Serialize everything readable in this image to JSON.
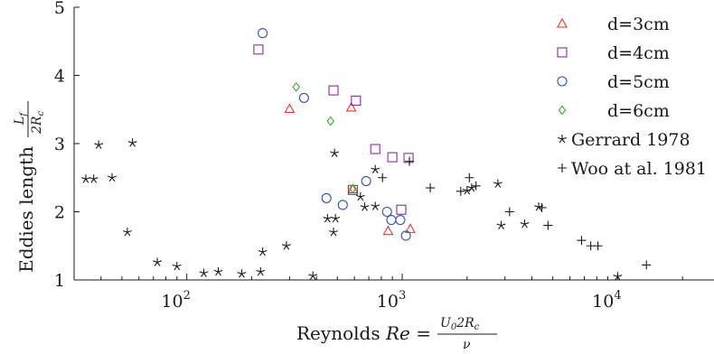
{
  "chart_data": {
    "type": "scatter",
    "xscale": "log",
    "xlim": [
      30,
      28000
    ],
    "ylim": [
      1,
      5
    ],
    "grid": false,
    "legend_position": "top-right",
    "xlabel_prefix": "Reynolds ",
    "xlabel_var": "Re",
    "xlabel_eq": " = ",
    "xlabel_num_a": "U",
    "xlabel_num_sub_a": "0",
    "xlabel_num_b": "2R",
    "xlabel_num_sub_b": "c",
    "xlabel_den": "ν",
    "ylabel_prefix": "Eddies length",
    "ylabel_num": "L",
    "ylabel_num_sub": "f",
    "ylabel_den": "2R",
    "ylabel_den_sub": "c",
    "x_tick_base": "10",
    "x_ticks": [
      {
        "value": 100,
        "exp": "2"
      },
      {
        "value": 1000,
        "exp": "3"
      },
      {
        "value": 10000,
        "exp": "4"
      }
    ],
    "y_ticks": [
      1,
      2,
      3,
      4,
      5
    ],
    "series": [
      {
        "name": "d=3cm",
        "marker": "triangle",
        "color": "#e8322a",
        "points": [
          [
            300,
            3.51
          ],
          [
            580,
            3.53
          ],
          [
            860,
            1.72
          ],
          [
            1090,
            1.75
          ],
          [
            590,
            2.33
          ]
        ]
      },
      {
        "name": "d=4cm",
        "marker": "square",
        "color": "#8e2a9e",
        "points": [
          [
            215,
            4.38
          ],
          [
            480,
            3.78
          ],
          [
            610,
            3.63
          ],
          [
            750,
            2.92
          ],
          [
            900,
            2.8
          ],
          [
            1070,
            2.79
          ],
          [
            990,
            2.03
          ],
          [
            590,
            2.32
          ]
        ]
      },
      {
        "name": "d=5cm",
        "marker": "circle",
        "color": "#2f4fb5",
        "points": [
          [
            225,
            4.62
          ],
          [
            350,
            3.67
          ],
          [
            445,
            2.2
          ],
          [
            530,
            2.1
          ],
          [
            680,
            2.45
          ],
          [
            850,
            2.0
          ],
          [
            890,
            1.88
          ],
          [
            980,
            1.88
          ],
          [
            1040,
            1.65
          ]
        ]
      },
      {
        "name": "d=6cm",
        "marker": "diamond",
        "color": "#3aa83a",
        "points": [
          [
            322,
            3.83
          ],
          [
            465,
            3.33
          ],
          [
            590,
            2.34
          ]
        ]
      },
      {
        "name": "Gerrard 1978",
        "marker": "star",
        "color": "#1a1a1a",
        "points": [
          [
            34,
            2.48
          ],
          [
            37,
            2.48
          ],
          [
            39,
            2.98
          ],
          [
            45,
            2.5
          ],
          [
            56,
            3.01
          ],
          [
            53,
            1.7
          ],
          [
            73,
            1.26
          ],
          [
            90,
            1.2
          ],
          [
            120,
            1.1
          ],
          [
            140,
            1.12
          ],
          [
            180,
            1.09
          ],
          [
            220,
            1.12
          ],
          [
            225,
            1.41
          ],
          [
            290,
            1.5
          ],
          [
            385,
            1.06
          ],
          [
            450,
            1.9
          ],
          [
            490,
            1.9
          ],
          [
            485,
            2.86
          ],
          [
            480,
            1.7
          ],
          [
            640,
            2.22
          ],
          [
            670,
            2.07
          ],
          [
            750,
            2.08
          ],
          [
            750,
            2.62
          ],
          [
            2000,
            2.31
          ],
          [
            2100,
            2.35
          ],
          [
            2780,
            2.41
          ],
          [
            2880,
            1.8
          ],
          [
            3700,
            1.82
          ],
          [
            4300,
            2.07
          ],
          [
            10000,
            1.05
          ]
        ]
      },
      {
        "name": "Woo at al. 1981",
        "marker": "plus",
        "color": "#1a1a1a",
        "points": [
          [
            810,
            2.5
          ],
          [
            1080,
            2.74
          ],
          [
            1350,
            2.35
          ],
          [
            1870,
            2.3
          ],
          [
            2050,
            2.5
          ],
          [
            2200,
            2.38
          ],
          [
            3150,
            2.0
          ],
          [
            4450,
            2.06
          ],
          [
            4750,
            1.8
          ],
          [
            6800,
            1.58
          ],
          [
            7500,
            1.5
          ],
          [
            8100,
            1.5
          ],
          [
            13600,
            1.22
          ]
        ]
      }
    ]
  }
}
